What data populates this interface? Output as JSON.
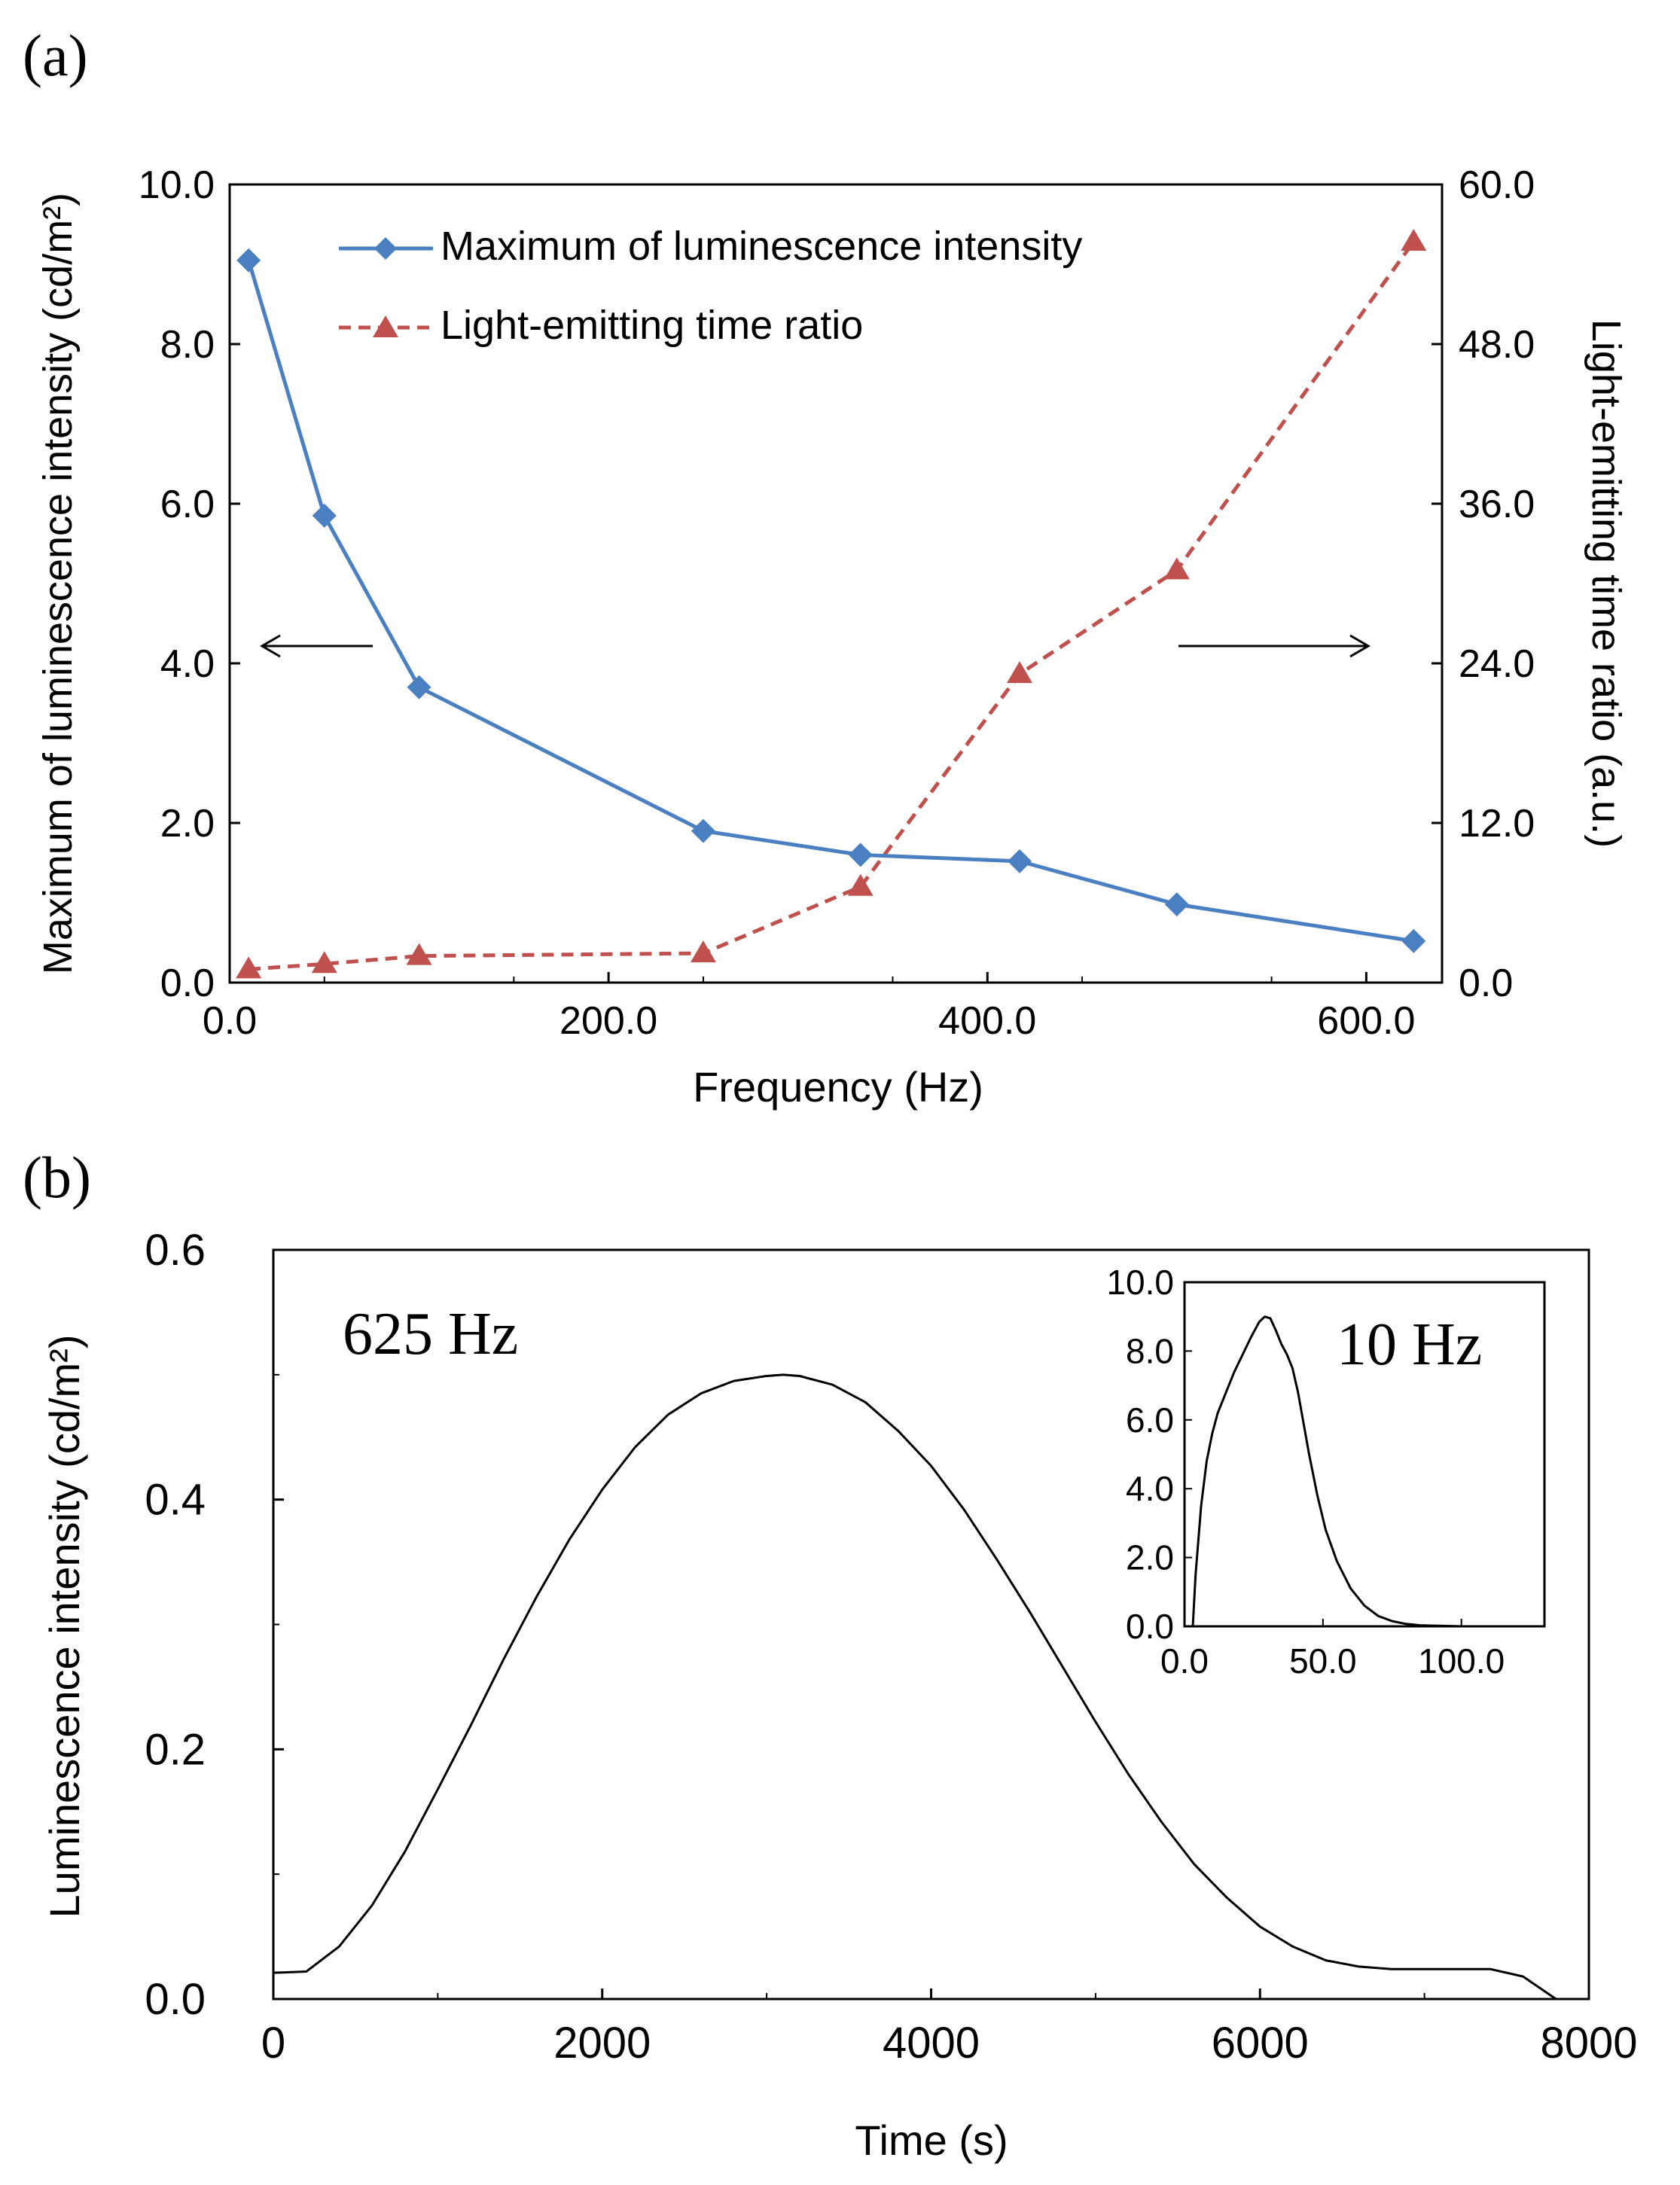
{
  "panel_a": {
    "label": "(a)",
    "arrow_left": "left-arrow-icon",
    "arrow_right": "right-arrow-icon"
  },
  "panel_b": {
    "label": "(b)",
    "annotation": "625 Hz",
    "inset_annotation": "10 Hz"
  },
  "colors": {
    "series_blue": "#4a7fc1",
    "series_red": "#c0504d",
    "axis": "#000000"
  },
  "chart_data": [
    {
      "type": "line",
      "xlabel": "Frequency (Hz)",
      "ylabel": "Maximum of luminescence intensity (cd/m²)",
      "y2label": "Light-emitting time ratio (a.u.)",
      "xlim": [
        0,
        640
      ],
      "ylim": [
        0,
        10
      ],
      "y2lim": [
        0,
        60
      ],
      "xticks": [
        "0.0",
        "200.0",
        "400.0",
        "600.0"
      ],
      "yticks": [
        "0.0",
        "2.0",
        "4.0",
        "6.0",
        "8.0",
        "10.0"
      ],
      "y2ticks": [
        "0.0",
        "12.0",
        "24.0",
        "36.0",
        "48.0",
        "60.0"
      ],
      "grid": false,
      "legend": "top-center",
      "series": [
        {
          "name": "Maximum of luminescence intensity",
          "axis": "left",
          "marker": "diamond",
          "x": [
            10,
            50,
            100,
            250,
            333,
            417,
            500,
            625
          ],
          "values": [
            9.05,
            5.85,
            3.7,
            1.9,
            1.6,
            1.52,
            0.98,
            0.52
          ]
        },
        {
          "name": "Light-emitting time ratio",
          "axis": "right",
          "marker": "triangle",
          "x": [
            10,
            50,
            100,
            250,
            333,
            417,
            500,
            625
          ],
          "values": [
            1.0,
            1.4,
            2.0,
            2.2,
            7.2,
            23.2,
            31.0,
            55.7
          ]
        }
      ]
    },
    {
      "type": "line",
      "xlabel": "Time (s)",
      "ylabel": "Luminescence intensity (cd/m²)",
      "xlim": [
        0,
        8000
      ],
      "ylim": [
        0,
        0.6
      ],
      "xticks": [
        "0",
        "2000",
        "4000",
        "6000",
        "8000"
      ],
      "yticks": [
        "0.0",
        "0.2",
        "0.4",
        "0.6"
      ],
      "grid": false,
      "series": [
        {
          "x": [
            0,
            200,
            400,
            600,
            800,
            1000,
            1200,
            1400,
            1600,
            1800,
            2000,
            2200,
            2400,
            2600,
            2800,
            3000,
            3100,
            3200,
            3400,
            3600,
            3800,
            4000,
            4200,
            4400,
            4600,
            4800,
            5000,
            5200,
            5400,
            5600,
            5800,
            6000,
            6200,
            6400,
            6600,
            6800,
            7000,
            7200,
            7400,
            7600,
            7800
          ],
          "values": [
            0.021,
            0.022,
            0.042,
            0.075,
            0.118,
            0.168,
            0.219,
            0.272,
            0.322,
            0.368,
            0.408,
            0.442,
            0.468,
            0.485,
            0.495,
            0.499,
            0.5,
            0.499,
            0.492,
            0.478,
            0.455,
            0.427,
            0.392,
            0.352,
            0.31,
            0.266,
            0.222,
            0.18,
            0.142,
            0.108,
            0.081,
            0.058,
            0.042,
            0.031,
            0.026,
            0.024,
            0.024,
            0.024,
            0.024,
            0.018,
            0.0
          ]
        }
      ]
    },
    {
      "type": "line",
      "role": "inset",
      "xlim": [
        0,
        130
      ],
      "ylim": [
        0,
        10
      ],
      "xticks": [
        "0.0",
        "50.0",
        "100.0"
      ],
      "yticks": [
        "0.0",
        "2.0",
        "4.0",
        "6.0",
        "8.0",
        "10.0"
      ],
      "series": [
        {
          "x": [
            0,
            3,
            4,
            6,
            8,
            10,
            12,
            15,
            18,
            21,
            24,
            27,
            29,
            31,
            33,
            35,
            37,
            39,
            41,
            43,
            45,
            48,
            51,
            55,
            60,
            65,
            70,
            75,
            80,
            85,
            90,
            95,
            100,
            110,
            120,
            130
          ],
          "values": [
            0.0,
            0.0,
            1.5,
            3.5,
            4.8,
            5.6,
            6.2,
            6.8,
            7.4,
            7.9,
            8.4,
            8.85,
            9.0,
            8.95,
            8.6,
            8.2,
            7.9,
            7.5,
            6.8,
            5.9,
            5.0,
            3.8,
            2.8,
            1.9,
            1.1,
            0.6,
            0.3,
            0.15,
            0.07,
            0.03,
            0.02,
            0.01,
            0.0,
            0.0,
            0.0,
            0.0
          ]
        }
      ]
    }
  ]
}
